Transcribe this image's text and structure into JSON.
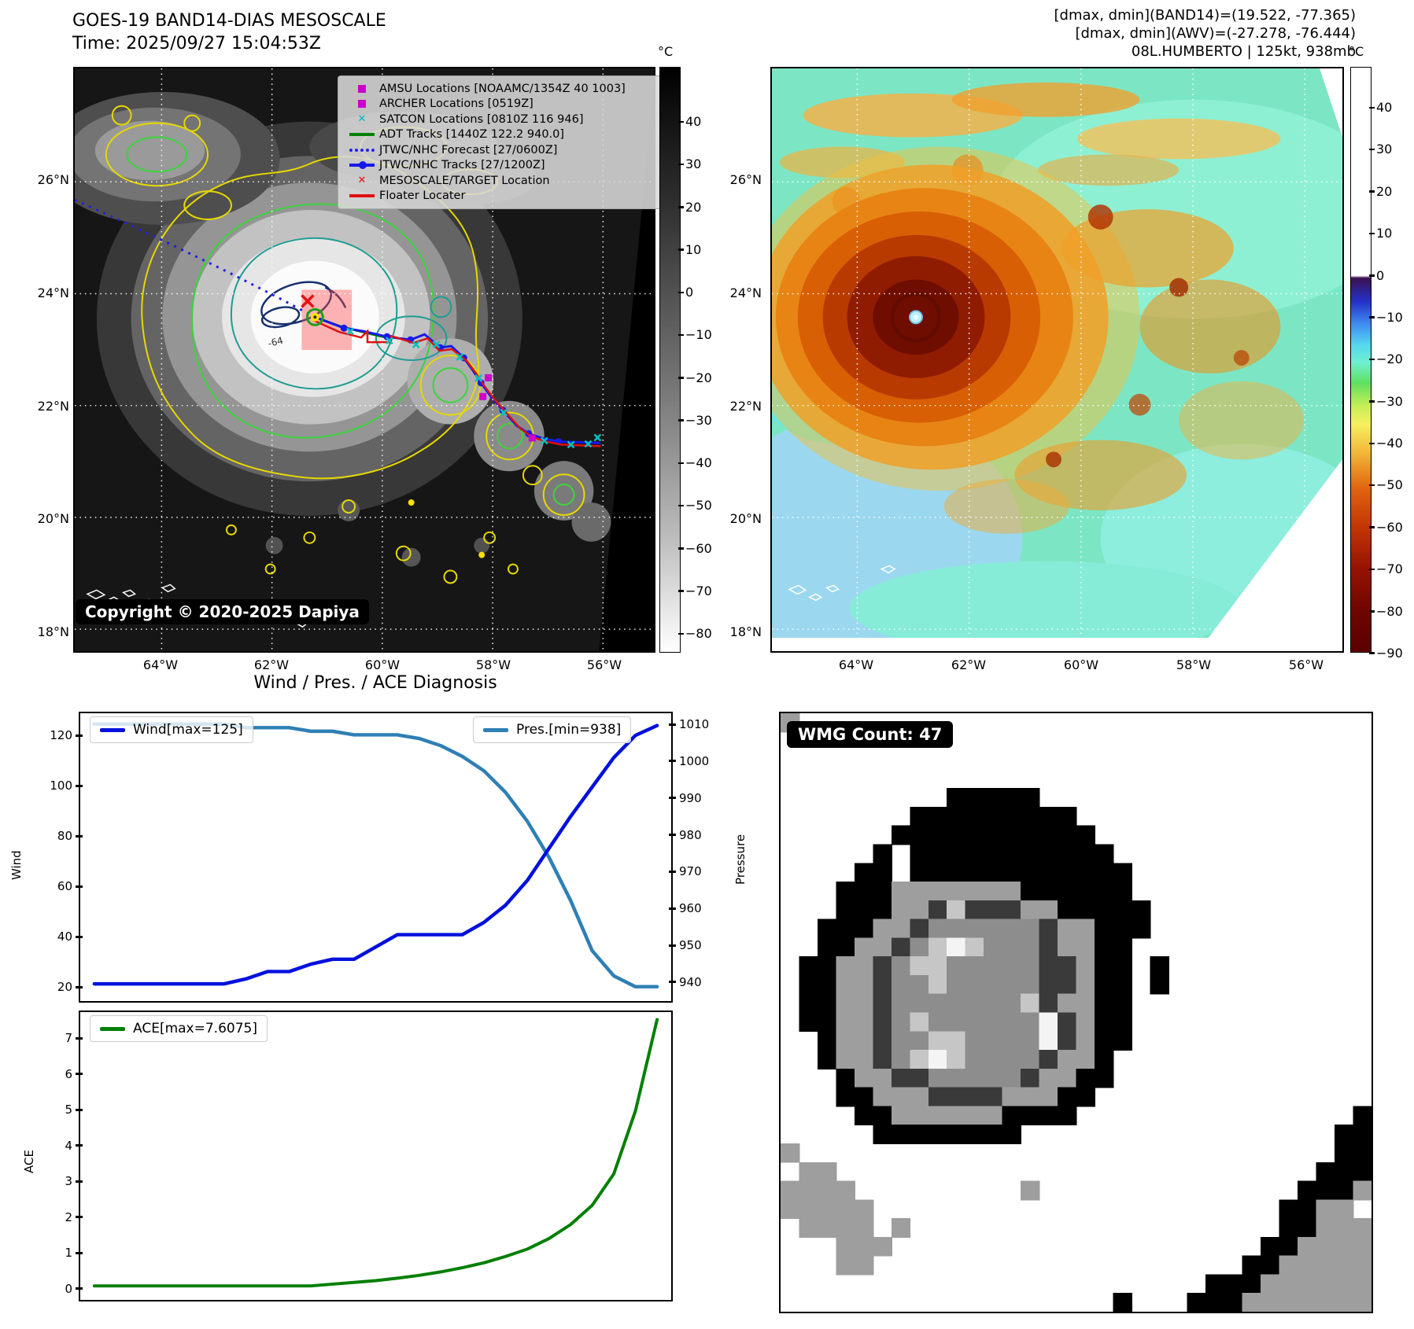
{
  "header": {
    "title_line1": "GOES-19 BAND14-DIAS MESOSCALE",
    "title_line2": "Time: 2025/09/27 15:04:53Z",
    "info_line1": "[dmax, dmin](BAND14)=(19.522, -77.365)",
    "info_line2": "[dmax, dmin](AWV)=(-27.278, -76.444)",
    "info_line3": "08L.HUMBERTO | 125kt, 938mb"
  },
  "left_map": {
    "legend": {
      "items": [
        "AMSU Locations [NOAAMC/1354Z 40 1003]",
        "ARCHER Locations [0519Z]",
        "SATCON Locations [0810Z 116 946]",
        "ADT Tracks [1440Z 122.2 940.0]",
        "JTWC/NHC Forecast [27/0600Z]",
        "JTWC/NHC Tracks [27/1200Z]",
        "MESOSCALE/TARGET Location",
        "Floater Locater"
      ]
    },
    "copyright": "Copyright © 2020-2025 Dapiya",
    "contour_label": "-64",
    "xticks": [
      "64°W",
      "62°W",
      "60°W",
      "58°W",
      "56°W"
    ],
    "yticks": [
      "26°N",
      "24°N",
      "22°N",
      "20°N",
      "18°N"
    ],
    "colorbar": {
      "unit": "°C",
      "ticks": [
        "40",
        "30",
        "20",
        "10",
        "0",
        "−10",
        "−20",
        "−30",
        "−40",
        "−50",
        "−60",
        "−70",
        "−80"
      ]
    }
  },
  "right_map": {
    "xticks": [
      "64°W",
      "62°W",
      "60°W",
      "58°W",
      "56°W"
    ],
    "yticks": [
      "26°N",
      "24°N",
      "22°N",
      "20°N",
      "18°N"
    ],
    "colorbar": {
      "unit": "°C",
      "ticks": [
        "40",
        "30",
        "20",
        "10",
        "0",
        "−10",
        "−20",
        "−30",
        "−40",
        "−50",
        "−60",
        "−70",
        "−80",
        "−90"
      ]
    }
  },
  "charts": {
    "title": "Wind / Pres. / ACE Diagnosis",
    "wind_legend": "Wind[max=125]",
    "pres_legend": "Pres.[min=938]",
    "ace_legend": "ACE[max=7.6075]",
    "wind_ylabel": "Wind",
    "pres_ylabel": "Pressure",
    "ace_ylabel": "ACE",
    "wind_ticks": [
      "120",
      "100",
      "80",
      "60",
      "40",
      "20"
    ],
    "pres_ticks": [
      "1010",
      "1000",
      "990",
      "980",
      "970",
      "960",
      "950",
      "940"
    ],
    "ace_ticks": [
      "7",
      "6",
      "5",
      "4",
      "3",
      "2",
      "1",
      "0"
    ]
  },
  "chart_data": [
    {
      "type": "line",
      "title": "Wind / Pres. / ACE Diagnosis (top panel)",
      "x": [
        0,
        1,
        2,
        3,
        4,
        5,
        6,
        7,
        8,
        9,
        10,
        11,
        12,
        13,
        14,
        15,
        16,
        17,
        18,
        19,
        20,
        21,
        22,
        23,
        24,
        25,
        26
      ],
      "series": [
        {
          "name": "Wind[max=125]",
          "color": "#0010dd",
          "axis": "left",
          "values": [
            20,
            20,
            20,
            20,
            20,
            20,
            20,
            22,
            25,
            25,
            28,
            30,
            30,
            35,
            40,
            40,
            40,
            40,
            45,
            52,
            62,
            75,
            88,
            100,
            112,
            121,
            125
          ]
        },
        {
          "name": "Pres.[min=938]",
          "color": "#2e7fb5",
          "axis": "right",
          "values": [
            1011,
            1011,
            1011,
            1011,
            1011,
            1011,
            1011,
            1010,
            1010,
            1010,
            1009,
            1009,
            1008,
            1008,
            1008,
            1007,
            1005,
            1002,
            998,
            992,
            984,
            974,
            962,
            948,
            941,
            938,
            938
          ]
        }
      ],
      "ylabel_left": "Wind",
      "ylabel_right": "Pressure",
      "ylim_left": [
        13,
        130
      ],
      "ylim_right": [
        934,
        1014
      ],
      "grid": false,
      "legend_position": "upper-left / upper-right"
    },
    {
      "type": "line",
      "title": "ACE (bottom panel)",
      "x": [
        0,
        1,
        2,
        3,
        4,
        5,
        6,
        7,
        8,
        9,
        10,
        11,
        12,
        13,
        14,
        15,
        16,
        17,
        18,
        19,
        20,
        21,
        22,
        23,
        24,
        25,
        26
      ],
      "series": [
        {
          "name": "ACE[max=7.6075]",
          "color": "#007f00",
          "values": [
            0,
            0,
            0,
            0,
            0,
            0,
            0,
            0,
            0,
            0,
            0,
            0.05,
            0.1,
            0.15,
            0.22,
            0.3,
            0.4,
            0.52,
            0.66,
            0.84,
            1.05,
            1.35,
            1.75,
            2.3,
            3.2,
            5.0,
            7.6075
          ]
        }
      ],
      "ylabel": "ACE",
      "ylim": [
        -0.4,
        7.82
      ],
      "grid": false
    }
  ],
  "wmg": {
    "label": "WMG Count: 47",
    "grid": {
      "palette": {
        "K": "#000000",
        "G": "#9e9e9e",
        "D": "#3a3a3a",
        "M": "#8d8d8d",
        "L": "#c6c6c6",
        "W": "#f4f4f4"
      },
      "rows": [
        "G...............................",
        "................................",
        "................................",
        "................................",
        ".........KKKKK..................",
        ".......KKKKKKKKK................",
        "......KKKKKKKKKKK...............",
        ".....K.KKKKKKKKKKK..............",
        "....KK.KKKKKKKKKKKK.............",
        "...KKKGGGGGGGKKKKKK.............",
        "...KKKGGDLDDDGGKKKKK............",
        "..KKKGGDMMMMMMDGGKKK............",
        "..KKGGDMLWLMMMDGGKK.............",
        ".KKGGDMLLMMMMMDDGKK.K...........",
        ".KKGGDMMLMMMMMDDGKK.K...........",
        ".KKGGDMMMMMMMLDGGKK.............",
        ".KKGGDMLMMMMMMWDGKK.............",
        "..KGGDMMLLMMMMWDGKK.............",
        "..KGGDMLWLMMMMDGGK..............",
        "...KGGDDMMMMMDGGKK..............",
        "...KKGGGDDDDGGGKK...............",
        "....KKGGGGGGKKKK...............K",
        ".....KKKKKKKK.................KK",
        "G.............................KK",
        ".GG..........................KKK",
        "GGGG.........G..............KKKG",
        "GGGGG......................KKGG.",
        ".GGGG.G....................KKGGG",
        "...GGG....................KKGGGG",
        "...GG....................KKGGGGG",
        ".......................KKKGGGGGG",
        "..................K...KKKGGGGGGG"
      ]
    }
  }
}
